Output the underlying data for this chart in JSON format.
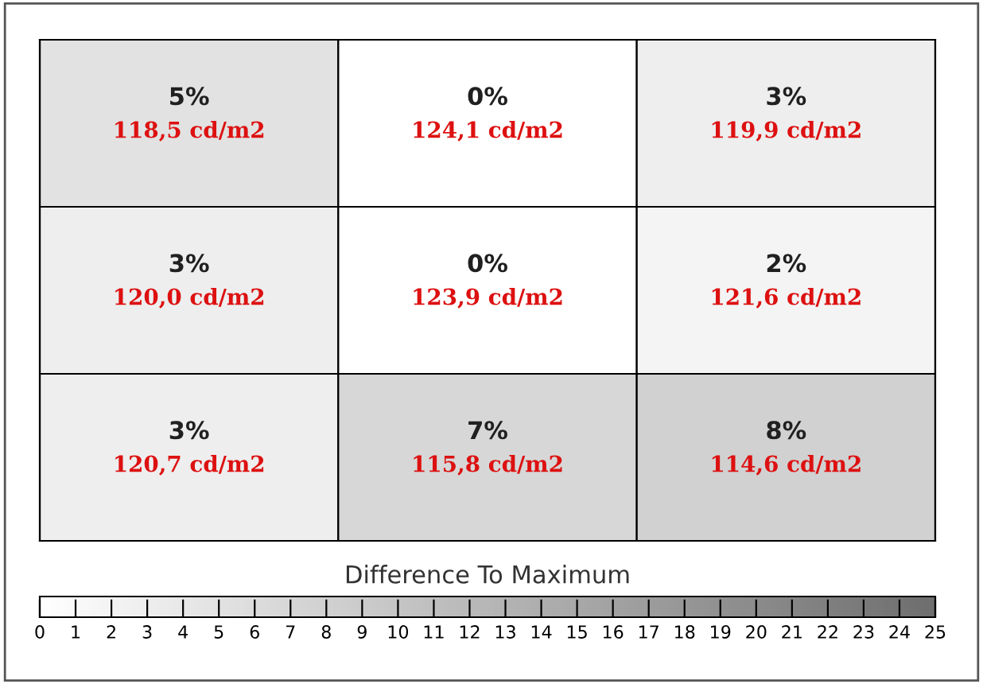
{
  "chart_data": {
    "type": "heatmap",
    "clabel": "Difference To Maximum",
    "categories": [
      null,
      null,
      null
    ],
    "y_categories": [
      null,
      null,
      null
    ],
    "cells": [
      [
        5,
        0,
        3
      ],
      [
        3,
        0,
        2
      ],
      [
        3,
        7,
        8
      ]
    ],
    "cell_labels": [
      [
        "5%\n118,5 cd/m2",
        "0%\n124,1 cd/m2",
        "3%\n119,9 cd/m2"
      ],
      [
        "3%\n120,0 cd/m2",
        "0%\n123,9 cd/m2",
        "2%\n121,6 cd/m2"
      ],
      [
        "3%\n120,7 cd/m2",
        "7%\n115,8 cd/m2",
        "8%\n114,6 cd/m2"
      ]
    ],
    "clim": [
      0,
      25
    ],
    "cticks": [
      0,
      1,
      2,
      3,
      4,
      5,
      6,
      7,
      8,
      9,
      10,
      11,
      12,
      13,
      14,
      15,
      16,
      17,
      18,
      19,
      20,
      21,
      22,
      23,
      24,
      25
    ]
  }
}
